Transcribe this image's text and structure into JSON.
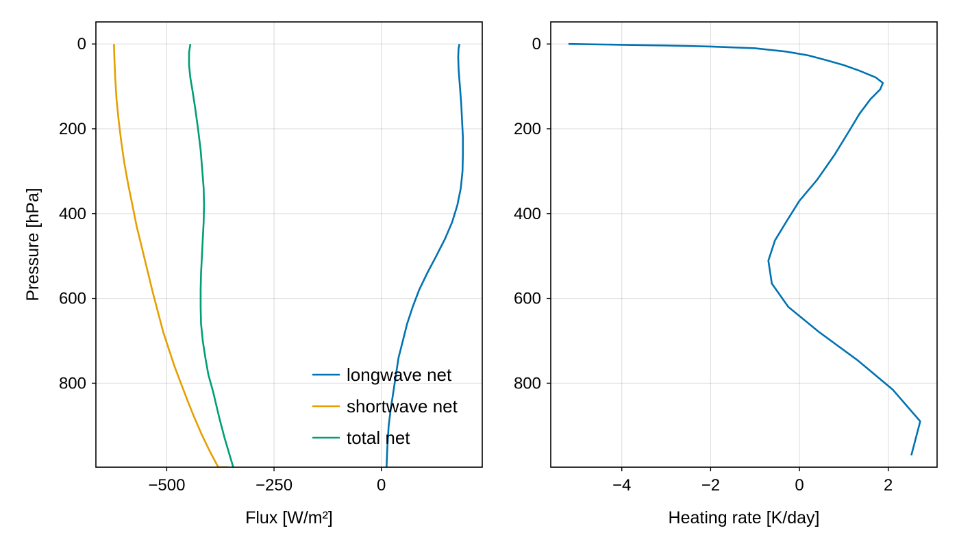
{
  "chart_data": [
    {
      "type": "line",
      "xlabel": "Flux [W/m²]",
      "ylabel": "Pressure [hPa]",
      "xlim": [
        -665,
        235
      ],
      "ylim": [
        998,
        -52
      ],
      "y_inverted": true,
      "xticks": [
        -500,
        -250,
        0
      ],
      "xtick_labels": [
        "−500",
        "−250",
        "0"
      ],
      "yticks": [
        0,
        200,
        400,
        600,
        800
      ],
      "ytick_labels": [
        "0",
        "200",
        "400",
        "600",
        "800"
      ],
      "grid": true,
      "legend": {
        "position": "bottom-right"
      },
      "series": [
        {
          "name": "longwave net",
          "color": "#0072b2",
          "x": [
            182,
            180,
            179,
            180,
            183,
            186,
            188,
            190,
            190,
            189,
            185,
            177,
            165,
            148,
            128,
            107,
            88,
            73,
            60,
            50,
            40,
            34,
            28,
            22,
            17,
            14,
            12
          ],
          "y": [
            0,
            10,
            30,
            60,
            100,
            140,
            180,
            220,
            260,
            300,
            340,
            380,
            420,
            460,
            500,
            540,
            580,
            620,
            660,
            700,
            740,
            780,
            820,
            860,
            900,
            950,
            998
          ]
        },
        {
          "name": "shortwave net",
          "color": "#e69f00",
          "x": [
            -623,
            -622,
            -620,
            -617,
            -612,
            -606,
            -599,
            -590,
            -580,
            -570,
            -558,
            -546,
            -534,
            -521,
            -508,
            -495,
            -482,
            -467,
            -452,
            -436,
            -419,
            -400,
            -380,
            -357
          ],
          "y": [
            0,
            30,
            80,
            130,
            180,
            230,
            280,
            330,
            380,
            430,
            480,
            530,
            580,
            630,
            680,
            720,
            760,
            800,
            840,
            880,
            920,
            960,
            998,
            998
          ]
        },
        {
          "name": "total net",
          "color": "#009e73",
          "x": [
            -445,
            -448,
            -448,
            -445,
            -440,
            -434,
            -427,
            -421,
            -417,
            -414,
            -413,
            -414,
            -416,
            -418,
            -420,
            -421,
            -421,
            -420,
            -416,
            -410,
            -403,
            -392,
            -378,
            -365,
            -345
          ],
          "y": [
            0,
            20,
            50,
            80,
            110,
            150,
            200,
            250,
            300,
            340,
            380,
            420,
            460,
            500,
            540,
            580,
            620,
            660,
            700,
            740,
            780,
            820,
            880,
            930,
            998
          ]
        }
      ]
    },
    {
      "type": "line",
      "xlabel": "Heating rate [K/day]",
      "ylabel": "",
      "xlim": [
        -5.6,
        3.1
      ],
      "ylim": [
        998,
        -52
      ],
      "y_inverted": true,
      "xticks": [
        -4,
        -2,
        0,
        2
      ],
      "xtick_labels": [
        "−4",
        "−2",
        "0",
        "2"
      ],
      "yticks": [
        0,
        200,
        400,
        600,
        800
      ],
      "ytick_labels": [
        "0",
        "200",
        "400",
        "600",
        "800"
      ],
      "grid": true,
      "series": [
        {
          "name": "",
          "color": "#0072b2",
          "x": [
            -5.2,
            -4.0,
            -3.0,
            -2.0,
            -1.0,
            -0.3,
            0.2,
            0.6,
            1.0,
            1.35,
            1.72,
            1.88,
            1.82,
            1.6,
            1.35,
            1.15,
            0.8,
            0.4,
            0.0,
            -0.3,
            -0.55,
            -0.7,
            -0.62,
            -0.25,
            0.45,
            1.3,
            2.1,
            2.72,
            2.52
          ],
          "y": [
            0,
            2,
            3.5,
            6,
            10,
            18,
            27,
            38,
            50,
            63,
            79,
            92,
            107,
            130,
            165,
            200,
            260,
            320,
            370,
            420,
            463,
            511,
            565,
            620,
            680,
            745,
            815,
            890,
            970
          ]
        }
      ]
    }
  ]
}
